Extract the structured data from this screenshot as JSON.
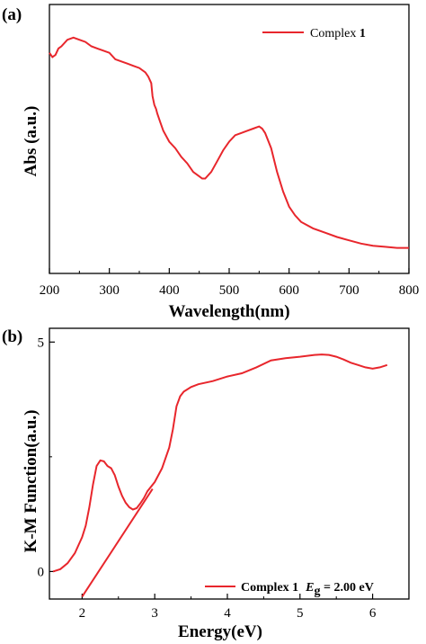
{
  "chart_data": [
    {
      "panel_label": "(a)",
      "type": "line",
      "xlabel": "Wavelength(nm)",
      "ylabel": "Abs (a.u.)",
      "xlim": [
        200,
        800
      ],
      "ylim": [
        0,
        1
      ],
      "x_ticks": [
        "200",
        "300",
        "400",
        "500",
        "600",
        "700",
        "800"
      ],
      "y_ticks": [],
      "grid": false,
      "legend_position": "top-right",
      "color": "#e8262c",
      "series": [
        {
          "name": "Complex 1",
          "legend_text": "Complex ",
          "legend_bold": "1",
          "x": [
            200,
            205,
            210,
            215,
            220,
            230,
            240,
            250,
            260,
            270,
            280,
            290,
            300,
            310,
            320,
            330,
            340,
            350,
            360,
            365,
            370,
            372,
            375,
            378,
            380,
            385,
            390,
            400,
            410,
            420,
            430,
            440,
            450,
            455,
            460,
            470,
            480,
            490,
            500,
            510,
            520,
            530,
            540,
            550,
            555,
            560,
            570,
            580,
            590,
            600,
            610,
            620,
            640,
            660,
            680,
            700,
            720,
            740,
            760,
            780,
            800
          ],
          "y": [
            0.91,
            0.89,
            0.9,
            0.93,
            0.94,
            0.97,
            0.98,
            0.97,
            0.96,
            0.94,
            0.93,
            0.92,
            0.91,
            0.88,
            0.87,
            0.86,
            0.85,
            0.84,
            0.82,
            0.8,
            0.77,
            0.71,
            0.67,
            0.65,
            0.63,
            0.59,
            0.55,
            0.5,
            0.47,
            0.43,
            0.4,
            0.36,
            0.34,
            0.33,
            0.33,
            0.36,
            0.41,
            0.46,
            0.5,
            0.53,
            0.54,
            0.55,
            0.56,
            0.57,
            0.56,
            0.54,
            0.47,
            0.36,
            0.27,
            0.2,
            0.16,
            0.13,
            0.1,
            0.08,
            0.06,
            0.045,
            0.03,
            0.02,
            0.015,
            0.01,
            0.01
          ]
        }
      ]
    },
    {
      "panel_label": "(b)",
      "type": "line",
      "xlabel": "Energy(eV)",
      "ylabel": "K-M Function(a.u.)",
      "xlim": [
        1.55,
        6.5
      ],
      "ylim": [
        -0.6,
        5.3
      ],
      "x_ticks": [
        "2",
        "3",
        "4",
        "5",
        "6"
      ],
      "y_ticks": [
        "0",
        "5"
      ],
      "grid": false,
      "legend_position": "bottom-right",
      "color": "#e8262c",
      "series": [
        {
          "name": "Complex 1",
          "legend_text": "Complex 1",
          "legend_eg_symbol": "E",
          "legend_eg_sub": "g",
          "legend_eg_value": " = 2.00 eV",
          "x": [
            1.6,
            1.7,
            1.8,
            1.9,
            2.0,
            2.05,
            2.1,
            2.15,
            2.2,
            2.25,
            2.3,
            2.35,
            2.4,
            2.45,
            2.5,
            2.55,
            2.6,
            2.65,
            2.7,
            2.75,
            2.8,
            2.85,
            2.9,
            3.0,
            3.1,
            3.2,
            3.25,
            3.3,
            3.35,
            3.4,
            3.5,
            3.6,
            3.8,
            4.0,
            4.2,
            4.4,
            4.6,
            4.8,
            5.0,
            5.2,
            5.3,
            5.4,
            5.5,
            5.6,
            5.7,
            5.8,
            5.9,
            6.0,
            6.1,
            6.2
          ],
          "y": [
            0.0,
            0.05,
            0.18,
            0.4,
            0.75,
            1.0,
            1.4,
            1.9,
            2.3,
            2.42,
            2.4,
            2.3,
            2.25,
            2.1,
            1.85,
            1.65,
            1.5,
            1.4,
            1.35,
            1.38,
            1.48,
            1.6,
            1.75,
            1.95,
            2.25,
            2.7,
            3.1,
            3.6,
            3.82,
            3.92,
            4.02,
            4.08,
            4.15,
            4.25,
            4.32,
            4.45,
            4.6,
            4.65,
            4.68,
            4.72,
            4.73,
            4.72,
            4.68,
            4.62,
            4.55,
            4.5,
            4.45,
            4.42,
            4.45,
            4.5
          ]
        },
        {
          "name": "",
          "role": "tangent",
          "x": [
            2.0,
            2.97
          ],
          "y": [
            -0.55,
            1.8
          ]
        }
      ]
    }
  ]
}
